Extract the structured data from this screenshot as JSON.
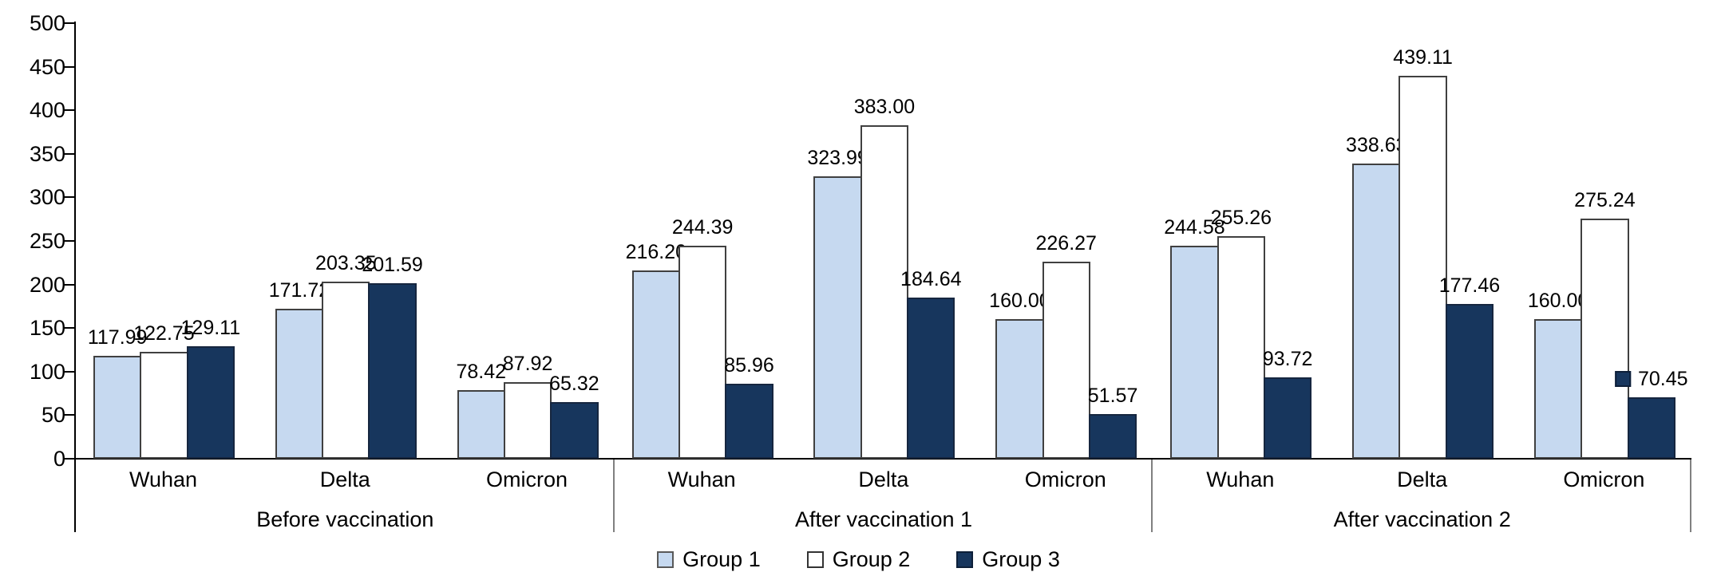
{
  "colors": {
    "background": "#ffffff",
    "axis": "#000000",
    "section_divider": "#808080",
    "label_text": "#000000",
    "series_fills": [
      "#C6D9F0",
      "#FFFFFF",
      "#17365D"
    ],
    "series_borders": [
      "#404040",
      "#404040",
      "#16263F"
    ]
  },
  "legend": {
    "entries": [
      {
        "label": "Group 1",
        "fill": "#C6D9F0",
        "border": "#595959"
      },
      {
        "label": "Group 2",
        "fill": "#FFFFFF",
        "border": "#333333"
      },
      {
        "label": "Group 3",
        "fill": "#17365D",
        "border": "#0d1f38"
      }
    ]
  },
  "chart_data": {
    "type": "bar",
    "title": "",
    "xlabel": "",
    "ylabel": "",
    "ylim": [
      0,
      500
    ],
    "ytick_step": 50,
    "ytick_labels": [
      "0",
      "50",
      "100",
      "150",
      "200",
      "250",
      "300",
      "350",
      "400",
      "450",
      "500"
    ],
    "grid": false,
    "legend_position": "bottom-center",
    "series_names": [
      "Group 1",
      "Group 2",
      "Group 3"
    ],
    "sections": [
      {
        "label": "Before vaccination",
        "clusters": [
          {
            "category": "Wuhan",
            "values": [
              117.99,
              122.75,
              129.11
            ],
            "labels": [
              "117.99",
              "122.75",
              "129.11"
            ]
          },
          {
            "category": "Delta",
            "values": [
              171.72,
              203.35,
              201.59
            ],
            "labels": [
              "171.72",
              "203.35",
              "201.59"
            ]
          },
          {
            "category": "Omicron",
            "values": [
              78.42,
              87.92,
              65.32
            ],
            "labels": [
              "78.42",
              "87.92",
              "65.32"
            ]
          }
        ]
      },
      {
        "label": "After vaccination 1",
        "clusters": [
          {
            "category": "Wuhan",
            "values": [
              216.2,
              244.39,
              85.96
            ],
            "labels": [
              "216.20",
              "244.39",
              "85.96"
            ]
          },
          {
            "category": "Delta",
            "values": [
              323.99,
              383.0,
              184.64
            ],
            "labels": [
              "323.99",
              "383.00",
              "184.64"
            ]
          },
          {
            "category": "Omicron",
            "values": [
              160.0,
              226.27,
              51.57
            ],
            "labels": [
              "160.00",
              "226.27",
              "51.57"
            ]
          }
        ]
      },
      {
        "label": "After vaccination 2",
        "clusters": [
          {
            "category": "Wuhan",
            "values": [
              244.58,
              255.26,
              93.72
            ],
            "labels": [
              "244.58",
              "255.26",
              "93.72"
            ]
          },
          {
            "category": "Delta",
            "values": [
              338.63,
              439.11,
              177.46
            ],
            "labels": [
              "338.63",
              "439.11",
              "177.46"
            ]
          },
          {
            "category": "Omicron",
            "values": [
              160.0,
              275.24,
              70.45
            ],
            "labels": [
              "160.00",
              "275.24",
              "70.45"
            ]
          }
        ]
      }
    ],
    "legend_key_on_label": {
      "section_index": 2,
      "cluster_index": 2,
      "series_index": 2
    }
  }
}
